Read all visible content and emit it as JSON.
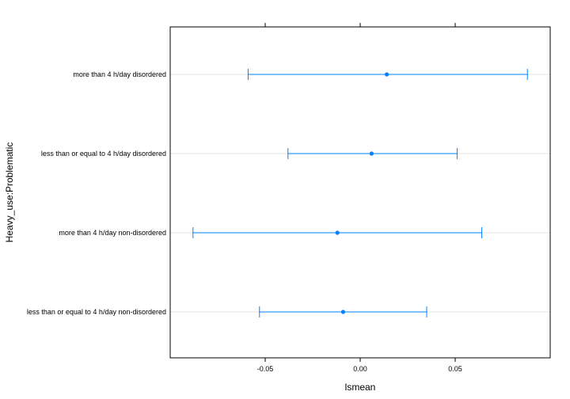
{
  "chart_data": {
    "type": "dotplot-errorbar",
    "xlabel": "lsmean",
    "ylabel": "Heavy_use:Problematic",
    "xlim": [
      -0.1,
      0.1
    ],
    "x_ticks": [
      {
        "value": -0.05,
        "label": "-0.05"
      },
      {
        "value": 0.0,
        "label": "0.00"
      },
      {
        "value": 0.05,
        "label": "0.05"
      }
    ],
    "categories": [
      "more than 4 h/day disordered",
      "less than or equal to 4 h/day disordered",
      "more than 4 h/day non-disordered",
      "less than or equal to 4 h/day non-disordered"
    ],
    "series": [
      {
        "points": [
          {
            "category": "more than 4 h/day disordered",
            "estimate": 0.014,
            "lower": -0.059,
            "upper": 0.088
          },
          {
            "category": "less than or equal to 4 h/day disordered",
            "estimate": 0.006,
            "lower": -0.038,
            "upper": 0.051
          },
          {
            "category": "more than 4 h/day non-disordered",
            "estimate": -0.012,
            "lower": -0.088,
            "upper": 0.064
          },
          {
            "category": "less than or equal to 4 h/day non-disordered",
            "estimate": -0.009,
            "lower": -0.053,
            "upper": 0.035
          }
        ]
      }
    ],
    "colors": {
      "series": "#0080ff",
      "gridline": "#e6e6e6",
      "frame": "#000000"
    },
    "grid": "horizontal reference lines"
  }
}
